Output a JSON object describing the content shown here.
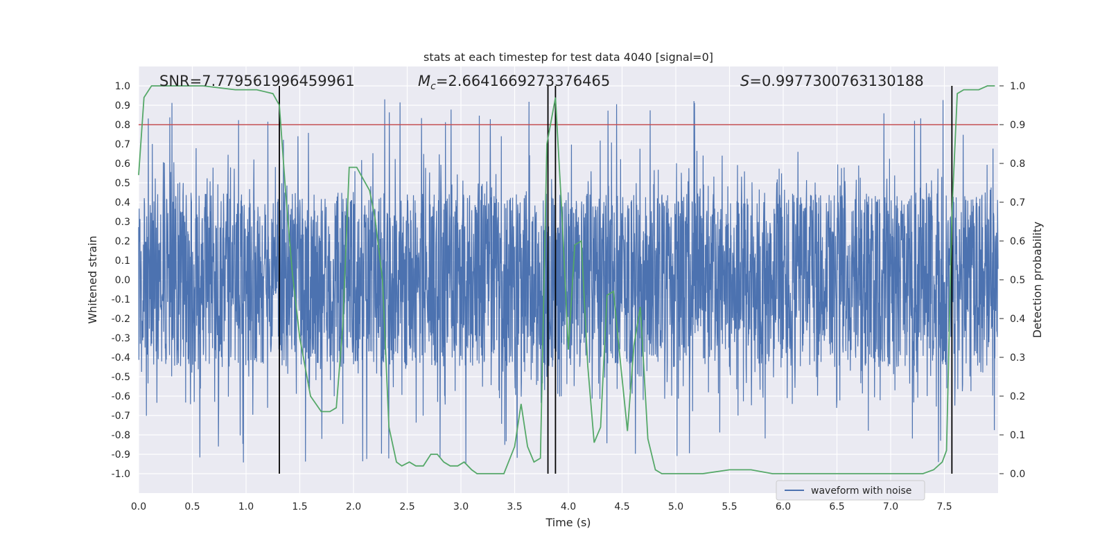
{
  "chart_data": {
    "type": "line",
    "title": "stats at each timestep for test data 4040 [signal=0]",
    "xlabel": "Time (s)",
    "ylabel": "Whitened strain",
    "ylabel_right": "Detection probability",
    "xlim": [
      0.0,
      8.0
    ],
    "ylim": [
      -1.1,
      1.1
    ],
    "ylim_right": [
      -0.05,
      1.05
    ],
    "x_ticks": [
      "0.0",
      "0.5",
      "1.0",
      "1.5",
      "2.0",
      "2.5",
      "3.0",
      "3.5",
      "4.0",
      "4.5",
      "5.0",
      "5.5",
      "6.0",
      "6.5",
      "7.0",
      "7.5"
    ],
    "y_ticks": [
      "1.0",
      "0.9",
      "0.8",
      "0.7",
      "0.6",
      "0.5",
      "0.4",
      "0.3",
      "0.2",
      "0.1",
      "0.0",
      "-0.1",
      "-0.2",
      "-0.3",
      "-0.4",
      "-0.5",
      "-0.6",
      "-0.7",
      "-0.8",
      "-0.9",
      "-1.0"
    ],
    "y_ticks_right": [
      "1.0",
      "0.9",
      "0.8",
      "0.7",
      "0.6",
      "0.5",
      "0.4",
      "0.3",
      "0.2",
      "0.1",
      "0.0"
    ],
    "grid": true,
    "legend": {
      "position": "lower-right",
      "entries": [
        "waveform with noise"
      ]
    },
    "annotations": {
      "snr": "SNR=7.779561996459961",
      "mc_symbol": "M",
      "mc_sub": "c",
      "mc_value": "=2.6641669273376465",
      "s_symbol": "S",
      "s_value": "=0.9977300763130188"
    },
    "threshold": {
      "y_right": 0.9,
      "color": "#c44e52"
    },
    "vertical_lines_x": [
      1.31,
      3.81,
      3.88,
      7.57
    ],
    "series": [
      {
        "name": "waveform with noise",
        "axis": "left",
        "color": "#4c72b0",
        "description": "noisy whitened strain samples, dense band roughly within [-0.6, 0.7] with spikes",
        "envelope": {
          "core_amplitude": 0.45,
          "spike_max": 0.95,
          "spike_min": -0.99
        }
      },
      {
        "name": "detection probability",
        "axis": "right",
        "color": "#55a868",
        "x": [
          0.0,
          0.05,
          0.12,
          0.3,
          0.6,
          0.9,
          1.1,
          1.25,
          1.31,
          1.37,
          1.43,
          1.5,
          1.6,
          1.7,
          1.78,
          1.84,
          1.9,
          1.96,
          2.03,
          2.09,
          2.15,
          2.2,
          2.27,
          2.33,
          2.4,
          2.45,
          2.52,
          2.58,
          2.65,
          2.72,
          2.78,
          2.84,
          2.9,
          2.97,
          3.03,
          3.1,
          3.15,
          3.22,
          3.3,
          3.4,
          3.5,
          3.56,
          3.62,
          3.68,
          3.74,
          3.8,
          3.88,
          3.94,
          4.0,
          4.06,
          4.12,
          4.18,
          4.24,
          4.3,
          4.36,
          4.42,
          4.48,
          4.55,
          4.61,
          4.67,
          4.74,
          4.81,
          4.87,
          5.0,
          5.25,
          5.5,
          5.7,
          5.9,
          6.2,
          6.5,
          6.7,
          6.9,
          7.1,
          7.3,
          7.4,
          7.48,
          7.52,
          7.57,
          7.62,
          7.68,
          7.74,
          7.82,
          7.9,
          7.97
        ],
        "values": [
          0.77,
          0.97,
          1.0,
          1.0,
          1.0,
          0.99,
          0.99,
          0.98,
          0.95,
          0.72,
          0.52,
          0.35,
          0.2,
          0.16,
          0.16,
          0.17,
          0.38,
          0.79,
          0.79,
          0.76,
          0.73,
          0.66,
          0.5,
          0.12,
          0.03,
          0.02,
          0.03,
          0.02,
          0.02,
          0.05,
          0.05,
          0.03,
          0.02,
          0.02,
          0.03,
          0.01,
          0.0,
          0.0,
          0.0,
          0.0,
          0.07,
          0.18,
          0.07,
          0.03,
          0.04,
          0.85,
          0.97,
          0.67,
          0.32,
          0.59,
          0.6,
          0.28,
          0.08,
          0.12,
          0.46,
          0.47,
          0.3,
          0.11,
          0.33,
          0.43,
          0.09,
          0.01,
          0.0,
          0.0,
          0.0,
          0.01,
          0.01,
          0.0,
          0.0,
          0.0,
          0.0,
          0.0,
          0.0,
          0.0,
          0.01,
          0.03,
          0.06,
          0.67,
          0.98,
          0.99,
          0.99,
          0.99,
          1.0,
          1.0
        ]
      }
    ]
  }
}
